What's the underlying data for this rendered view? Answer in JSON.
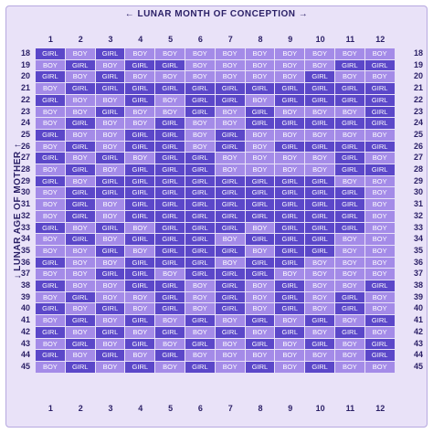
{
  "header": {
    "title": "LUNAR MONTH OF CONCEPTION",
    "left_arrow": "←",
    "right_arrow": "→"
  },
  "side": {
    "title": "LUNAR AGE OF MOTHER",
    "up_arrow": "↑",
    "down_arrow": "↓"
  },
  "months": [
    "1",
    "2",
    "3",
    "4",
    "5",
    "6",
    "7",
    "8",
    "9",
    "10",
    "11",
    "12"
  ],
  "ages": [
    "18",
    "19",
    "20",
    "21",
    "22",
    "23",
    "24",
    "25",
    "26",
    "27",
    "28",
    "29",
    "30",
    "31",
    "32",
    "33",
    "34",
    "35",
    "36",
    "37",
    "38",
    "39",
    "40",
    "41",
    "42",
    "43",
    "44",
    "45"
  ],
  "grid": [
    [
      "GIRL",
      "BOY",
      "GIRL",
      "BOY",
      "BOY",
      "BOY",
      "BOY",
      "BOY",
      "BOY",
      "BOY",
      "BOY",
      "BOY"
    ],
    [
      "BOY",
      "GIRL",
      "BOY",
      "GIRL",
      "GIRL",
      "BOY",
      "BOY",
      "BOY",
      "BOY",
      "BOY",
      "GIRL",
      "GIRL"
    ],
    [
      "GIRL",
      "BOY",
      "GIRL",
      "BOY",
      "BOY",
      "BOY",
      "BOY",
      "BOY",
      "BOY",
      "GIRL",
      "BOY",
      "BOY"
    ],
    [
      "BOY",
      "GIRL",
      "GIRL",
      "GIRL",
      "GIRL",
      "GIRL",
      "GIRL",
      "GIRL",
      "GIRL",
      "GIRL",
      "GIRL",
      "GIRL"
    ],
    [
      "GIRL",
      "BOY",
      "BOY",
      "GIRL",
      "BOY",
      "GIRL",
      "GIRL",
      "BOY",
      "GIRL",
      "GIRL",
      "GIRL",
      "GIRL"
    ],
    [
      "BOY",
      "BOY",
      "GIRL",
      "BOY",
      "BOY",
      "GIRL",
      "BOY",
      "GIRL",
      "BOY",
      "BOY",
      "BOY",
      "GIRL"
    ],
    [
      "BOY",
      "GIRL",
      "BOY",
      "BOY",
      "GIRL",
      "BOY",
      "BOY",
      "GIRL",
      "GIRL",
      "GIRL",
      "GIRL",
      "GIRL"
    ],
    [
      "GIRL",
      "BOY",
      "BOY",
      "GIRL",
      "GIRL",
      "BOY",
      "GIRL",
      "BOY",
      "BOY",
      "BOY",
      "BOY",
      "BOY"
    ],
    [
      "BOY",
      "GIRL",
      "BOY",
      "GIRL",
      "GIRL",
      "BOY",
      "GIRL",
      "BOY",
      "GIRL",
      "GIRL",
      "GIRL",
      "GIRL"
    ],
    [
      "GIRL",
      "BOY",
      "GIRL",
      "BOY",
      "GIRL",
      "GIRL",
      "BOY",
      "BOY",
      "BOY",
      "BOY",
      "GIRL",
      "BOY"
    ],
    [
      "BOY",
      "GIRL",
      "BOY",
      "GIRL",
      "GIRL",
      "GIRL",
      "BOY",
      "BOY",
      "BOY",
      "BOY",
      "GIRL",
      "GIRL"
    ],
    [
      "GIRL",
      "BOY",
      "GIRL",
      "GIRL",
      "GIRL",
      "GIRL",
      "GIRL",
      "GIRL",
      "GIRL",
      "GIRL",
      "BOY",
      "BOY"
    ],
    [
      "BOY",
      "GIRL",
      "GIRL",
      "GIRL",
      "GIRL",
      "GIRL",
      "GIRL",
      "GIRL",
      "GIRL",
      "GIRL",
      "GIRL",
      "BOY"
    ],
    [
      "BOY",
      "GIRL",
      "BOY",
      "GIRL",
      "GIRL",
      "GIRL",
      "GIRL",
      "GIRL",
      "GIRL",
      "GIRL",
      "GIRL",
      "BOY"
    ],
    [
      "BOY",
      "GIRL",
      "BOY",
      "GIRL",
      "GIRL",
      "GIRL",
      "GIRL",
      "GIRL",
      "GIRL",
      "GIRL",
      "GIRL",
      "BOY"
    ],
    [
      "GIRL",
      "BOY",
      "GIRL",
      "BOY",
      "GIRL",
      "GIRL",
      "GIRL",
      "BOY",
      "GIRL",
      "GIRL",
      "GIRL",
      "BOY"
    ],
    [
      "BOY",
      "GIRL",
      "BOY",
      "GIRL",
      "GIRL",
      "GIRL",
      "BOY",
      "GIRL",
      "GIRL",
      "GIRL",
      "BOY",
      "BOY"
    ],
    [
      "BOY",
      "BOY",
      "GIRL",
      "BOY",
      "GIRL",
      "GIRL",
      "GIRL",
      "BOY",
      "GIRL",
      "GIRL",
      "BOY",
      "BOY"
    ],
    [
      "GIRL",
      "BOY",
      "BOY",
      "GIRL",
      "GIRL",
      "GIRL",
      "BOY",
      "GIRL",
      "GIRL",
      "BOY",
      "BOY",
      "BOY"
    ],
    [
      "BOY",
      "BOY",
      "GIRL",
      "GIRL",
      "BOY",
      "GIRL",
      "GIRL",
      "GIRL",
      "BOY",
      "BOY",
      "BOY",
      "BOY"
    ],
    [
      "GIRL",
      "BOY",
      "BOY",
      "GIRL",
      "GIRL",
      "BOY",
      "GIRL",
      "BOY",
      "GIRL",
      "BOY",
      "BOY",
      "GIRL"
    ],
    [
      "BOY",
      "GIRL",
      "BOY",
      "BOY",
      "GIRL",
      "BOY",
      "GIRL",
      "BOY",
      "GIRL",
      "BOY",
      "GIRL",
      "BOY"
    ],
    [
      "GIRL",
      "BOY",
      "GIRL",
      "BOY",
      "GIRL",
      "BOY",
      "GIRL",
      "BOY",
      "GIRL",
      "BOY",
      "GIRL",
      "BOY"
    ],
    [
      "BOY",
      "GIRL",
      "BOY",
      "GIRL",
      "BOY",
      "GIRL",
      "BOY",
      "GIRL",
      "BOY",
      "GIRL",
      "BOY",
      "GIRL"
    ],
    [
      "GIRL",
      "BOY",
      "GIRL",
      "BOY",
      "GIRL",
      "BOY",
      "GIRL",
      "BOY",
      "GIRL",
      "BOY",
      "GIRL",
      "BOY"
    ],
    [
      "BOY",
      "GIRL",
      "BOY",
      "GIRL",
      "BOY",
      "GIRL",
      "BOY",
      "GIRL",
      "BOY",
      "GIRL",
      "BOY",
      "GIRL"
    ],
    [
      "GIRL",
      "BOY",
      "GIRL",
      "BOY",
      "GIRL",
      "BOY",
      "BOY",
      "BOY",
      "BOY",
      "BOY",
      "BOY",
      "GIRL"
    ],
    [
      "BOY",
      "GIRL",
      "BOY",
      "GIRL",
      "BOY",
      "GIRL",
      "BOY",
      "GIRL",
      "BOY",
      "GIRL",
      "BOY",
      "BOY"
    ]
  ],
  "colors": {
    "girl": "#5b47c9",
    "boy": "#a48be8",
    "label": "#2a1f66",
    "panel": "#e9e2f8"
  }
}
